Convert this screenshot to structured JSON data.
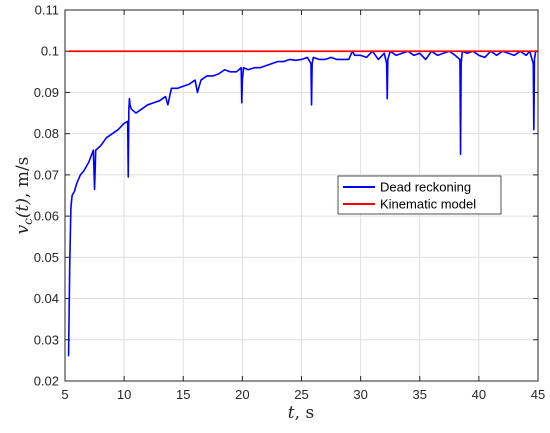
{
  "chart_data": {
    "type": "line",
    "title": "",
    "xlabel": "t, s",
    "xlabel_parts": {
      "var": "t",
      "unit": ", s"
    },
    "ylabel": "v_c(t), m/s",
    "ylabel_parts": {
      "var": "v",
      "sub": "c",
      "arg": "(t)",
      "unit": ", m/s"
    },
    "xlim": [
      5,
      45
    ],
    "ylim": [
      0.02,
      0.11
    ],
    "xticks": [
      5,
      10,
      15,
      20,
      25,
      30,
      35,
      40,
      45
    ],
    "yticks": [
      0.02,
      0.03,
      0.04,
      0.05,
      0.06,
      0.07,
      0.08,
      0.09,
      0.1,
      0.11
    ],
    "xtick_labels": [
      "5",
      "10",
      "15",
      "20",
      "25",
      "30",
      "35",
      "40",
      "45"
    ],
    "ytick_labels": [
      "0.02",
      "0.03",
      "0.04",
      "0.05",
      "0.06",
      "0.07",
      "0.08",
      "0.09",
      "0.1",
      "0.11"
    ],
    "grid": true,
    "legend_position": "right-middle",
    "series": [
      {
        "name": "Dead reckoning",
        "color": "#0000ff",
        "x": [
          5.3,
          5.4,
          5.5,
          5.6,
          5.8,
          6.0,
          6.3,
          6.6,
          7.0,
          7.4,
          7.5,
          7.6,
          8.0,
          8.5,
          9.0,
          9.5,
          10.0,
          10.3,
          10.35,
          10.4,
          10.45,
          10.5,
          10.6,
          11.0,
          11.5,
          12.0,
          12.5,
          13.0,
          13.5,
          13.7,
          14.0,
          14.5,
          15.0,
          15.5,
          16.0,
          16.2,
          16.5,
          17.0,
          17.5,
          18.0,
          18.5,
          19.0,
          19.5,
          19.9,
          19.95,
          20.0,
          20.1,
          20.5,
          21.0,
          21.5,
          22.0,
          22.5,
          23.0,
          23.5,
          24.0,
          24.5,
          25.0,
          25.5,
          25.8,
          25.85,
          25.9,
          26.0,
          26.5,
          27.0,
          27.5,
          28.0,
          28.5,
          29.0,
          29.3,
          29.5,
          30.0,
          30.5,
          31.0,
          31.5,
          32.0,
          32.2,
          32.25,
          32.3,
          32.5,
          33.0,
          33.5,
          34.0,
          34.5,
          35.0,
          35.5,
          36.0,
          36.5,
          37.0,
          37.5,
          38.0,
          38.4,
          38.45,
          38.5,
          38.6,
          39.0,
          39.5,
          40.0,
          40.5,
          41.0,
          41.5,
          42.0,
          42.5,
          43.0,
          43.5,
          44.0,
          44.3,
          44.5,
          44.6,
          44.65,
          44.7,
          44.8,
          45.0
        ],
        "y": [
          0.026,
          0.048,
          0.062,
          0.065,
          0.066,
          0.068,
          0.07,
          0.071,
          0.073,
          0.076,
          0.0665,
          0.076,
          0.077,
          0.079,
          0.08,
          0.081,
          0.0825,
          0.083,
          0.0695,
          0.086,
          0.0885,
          0.087,
          0.086,
          0.085,
          0.086,
          0.087,
          0.0875,
          0.088,
          0.089,
          0.087,
          0.091,
          0.091,
          0.0915,
          0.092,
          0.093,
          0.09,
          0.093,
          0.094,
          0.094,
          0.0945,
          0.0955,
          0.095,
          0.095,
          0.096,
          0.0875,
          0.093,
          0.096,
          0.0955,
          0.096,
          0.096,
          0.0965,
          0.097,
          0.0975,
          0.0975,
          0.098,
          0.0978,
          0.098,
          0.0985,
          0.097,
          0.087,
          0.097,
          0.0985,
          0.098,
          0.098,
          0.0985,
          0.098,
          0.098,
          0.098,
          0.1,
          0.099,
          0.099,
          0.0985,
          0.1,
          0.098,
          0.0995,
          0.097,
          0.0885,
          0.098,
          0.1,
          0.099,
          0.0995,
          0.1,
          0.099,
          0.0995,
          0.098,
          0.1,
          0.099,
          0.0995,
          0.1,
          0.099,
          0.098,
          0.075,
          0.097,
          0.1,
          0.0995,
          0.1,
          0.099,
          0.0985,
          0.1,
          0.099,
          0.1,
          0.0995,
          0.099,
          0.1,
          0.099,
          0.1,
          0.098,
          0.097,
          0.081,
          0.098,
          0.1,
          0.1
        ]
      },
      {
        "name": "Kinematic model",
        "color": "#ff0000",
        "x": [
          5.3,
          45
        ],
        "y": [
          0.1,
          0.1
        ]
      }
    ]
  }
}
